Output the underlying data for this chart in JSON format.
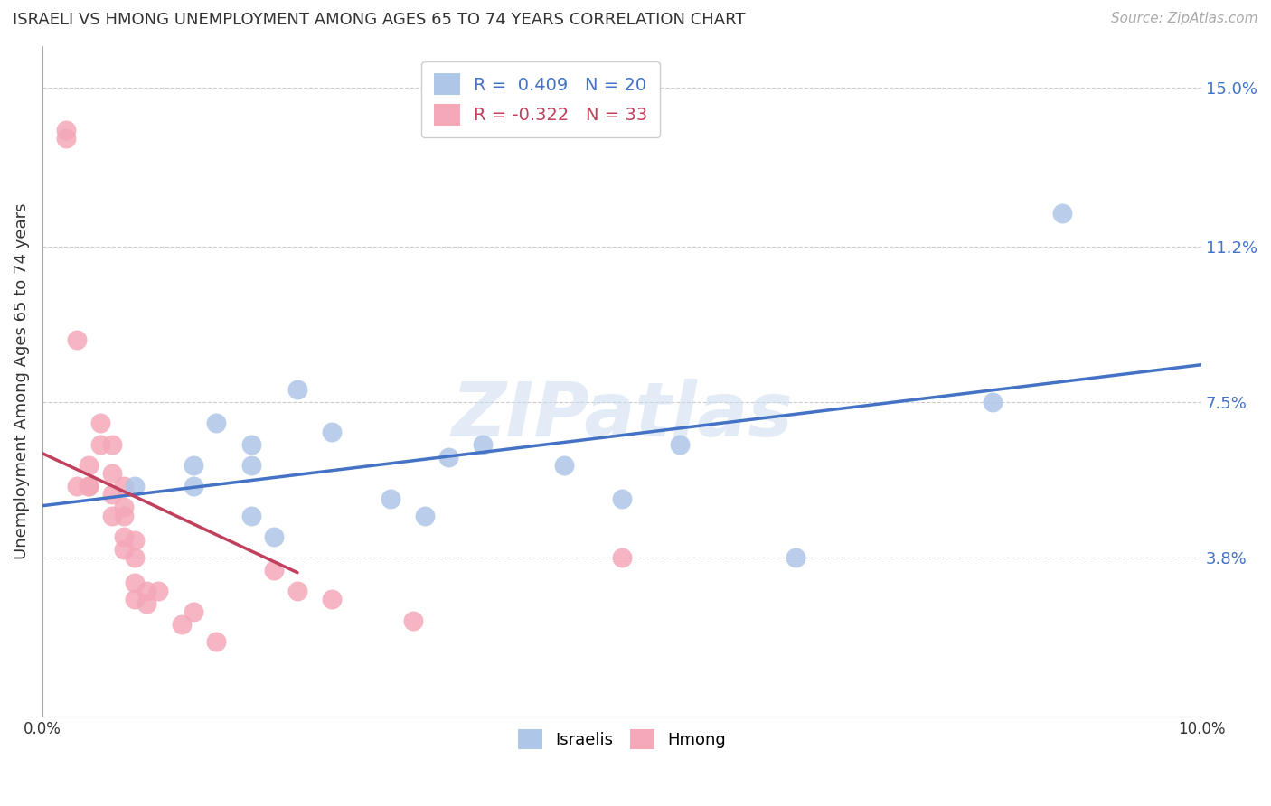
{
  "title": "ISRAELI VS HMONG UNEMPLOYMENT AMONG AGES 65 TO 74 YEARS CORRELATION CHART",
  "source": "Source: ZipAtlas.com",
  "ylabel": "Unemployment Among Ages 65 to 74 years",
  "xlim": [
    0.0,
    0.1
  ],
  "ylim": [
    0.0,
    0.16
  ],
  "yticks": [
    0.038,
    0.075,
    0.112,
    0.15
  ],
  "ytick_labels": [
    "3.8%",
    "7.5%",
    "11.2%",
    "15.0%"
  ],
  "xticks": [
    0.0,
    0.01,
    0.02,
    0.03,
    0.04,
    0.05,
    0.06,
    0.07,
    0.08,
    0.09,
    0.1
  ],
  "xtick_labels": [
    "0.0%",
    "",
    "",
    "",
    "",
    "",
    "",
    "",
    "",
    "",
    "10.0%"
  ],
  "israeli_R": 0.409,
  "israeli_N": 20,
  "hmong_R": -0.322,
  "hmong_N": 33,
  "israeli_color": "#aec6e8",
  "hmong_color": "#f4a8b8",
  "israeli_line_color": "#4472c4",
  "hmong_line_color": "#c0405e",
  "watermark": "ZIPatlas",
  "israeli_x": [
    0.008,
    0.013,
    0.013,
    0.015,
    0.018,
    0.018,
    0.018,
    0.02,
    0.022,
    0.025,
    0.03,
    0.033,
    0.035,
    0.038,
    0.045,
    0.05,
    0.055,
    0.065,
    0.082,
    0.088
  ],
  "israeli_y": [
    0.055,
    0.055,
    0.06,
    0.07,
    0.065,
    0.06,
    0.048,
    0.043,
    0.078,
    0.068,
    0.052,
    0.048,
    0.062,
    0.065,
    0.06,
    0.052,
    0.065,
    0.038,
    0.075,
    0.12
  ],
  "hmong_x": [
    0.002,
    0.002,
    0.003,
    0.003,
    0.004,
    0.004,
    0.004,
    0.005,
    0.005,
    0.006,
    0.006,
    0.006,
    0.006,
    0.007,
    0.007,
    0.007,
    0.007,
    0.007,
    0.008,
    0.008,
    0.008,
    0.008,
    0.009,
    0.009,
    0.01,
    0.012,
    0.013,
    0.015,
    0.02,
    0.022,
    0.025,
    0.032,
    0.05
  ],
  "hmong_y": [
    0.14,
    0.138,
    0.09,
    0.055,
    0.055,
    0.06,
    0.055,
    0.07,
    0.065,
    0.065,
    0.058,
    0.053,
    0.048,
    0.055,
    0.05,
    0.048,
    0.043,
    0.04,
    0.042,
    0.038,
    0.032,
    0.028,
    0.03,
    0.027,
    0.03,
    0.022,
    0.025,
    0.018,
    0.035,
    0.03,
    0.028,
    0.023,
    0.038
  ],
  "background_color": "#ffffff",
  "grid_color": "#cccccc"
}
